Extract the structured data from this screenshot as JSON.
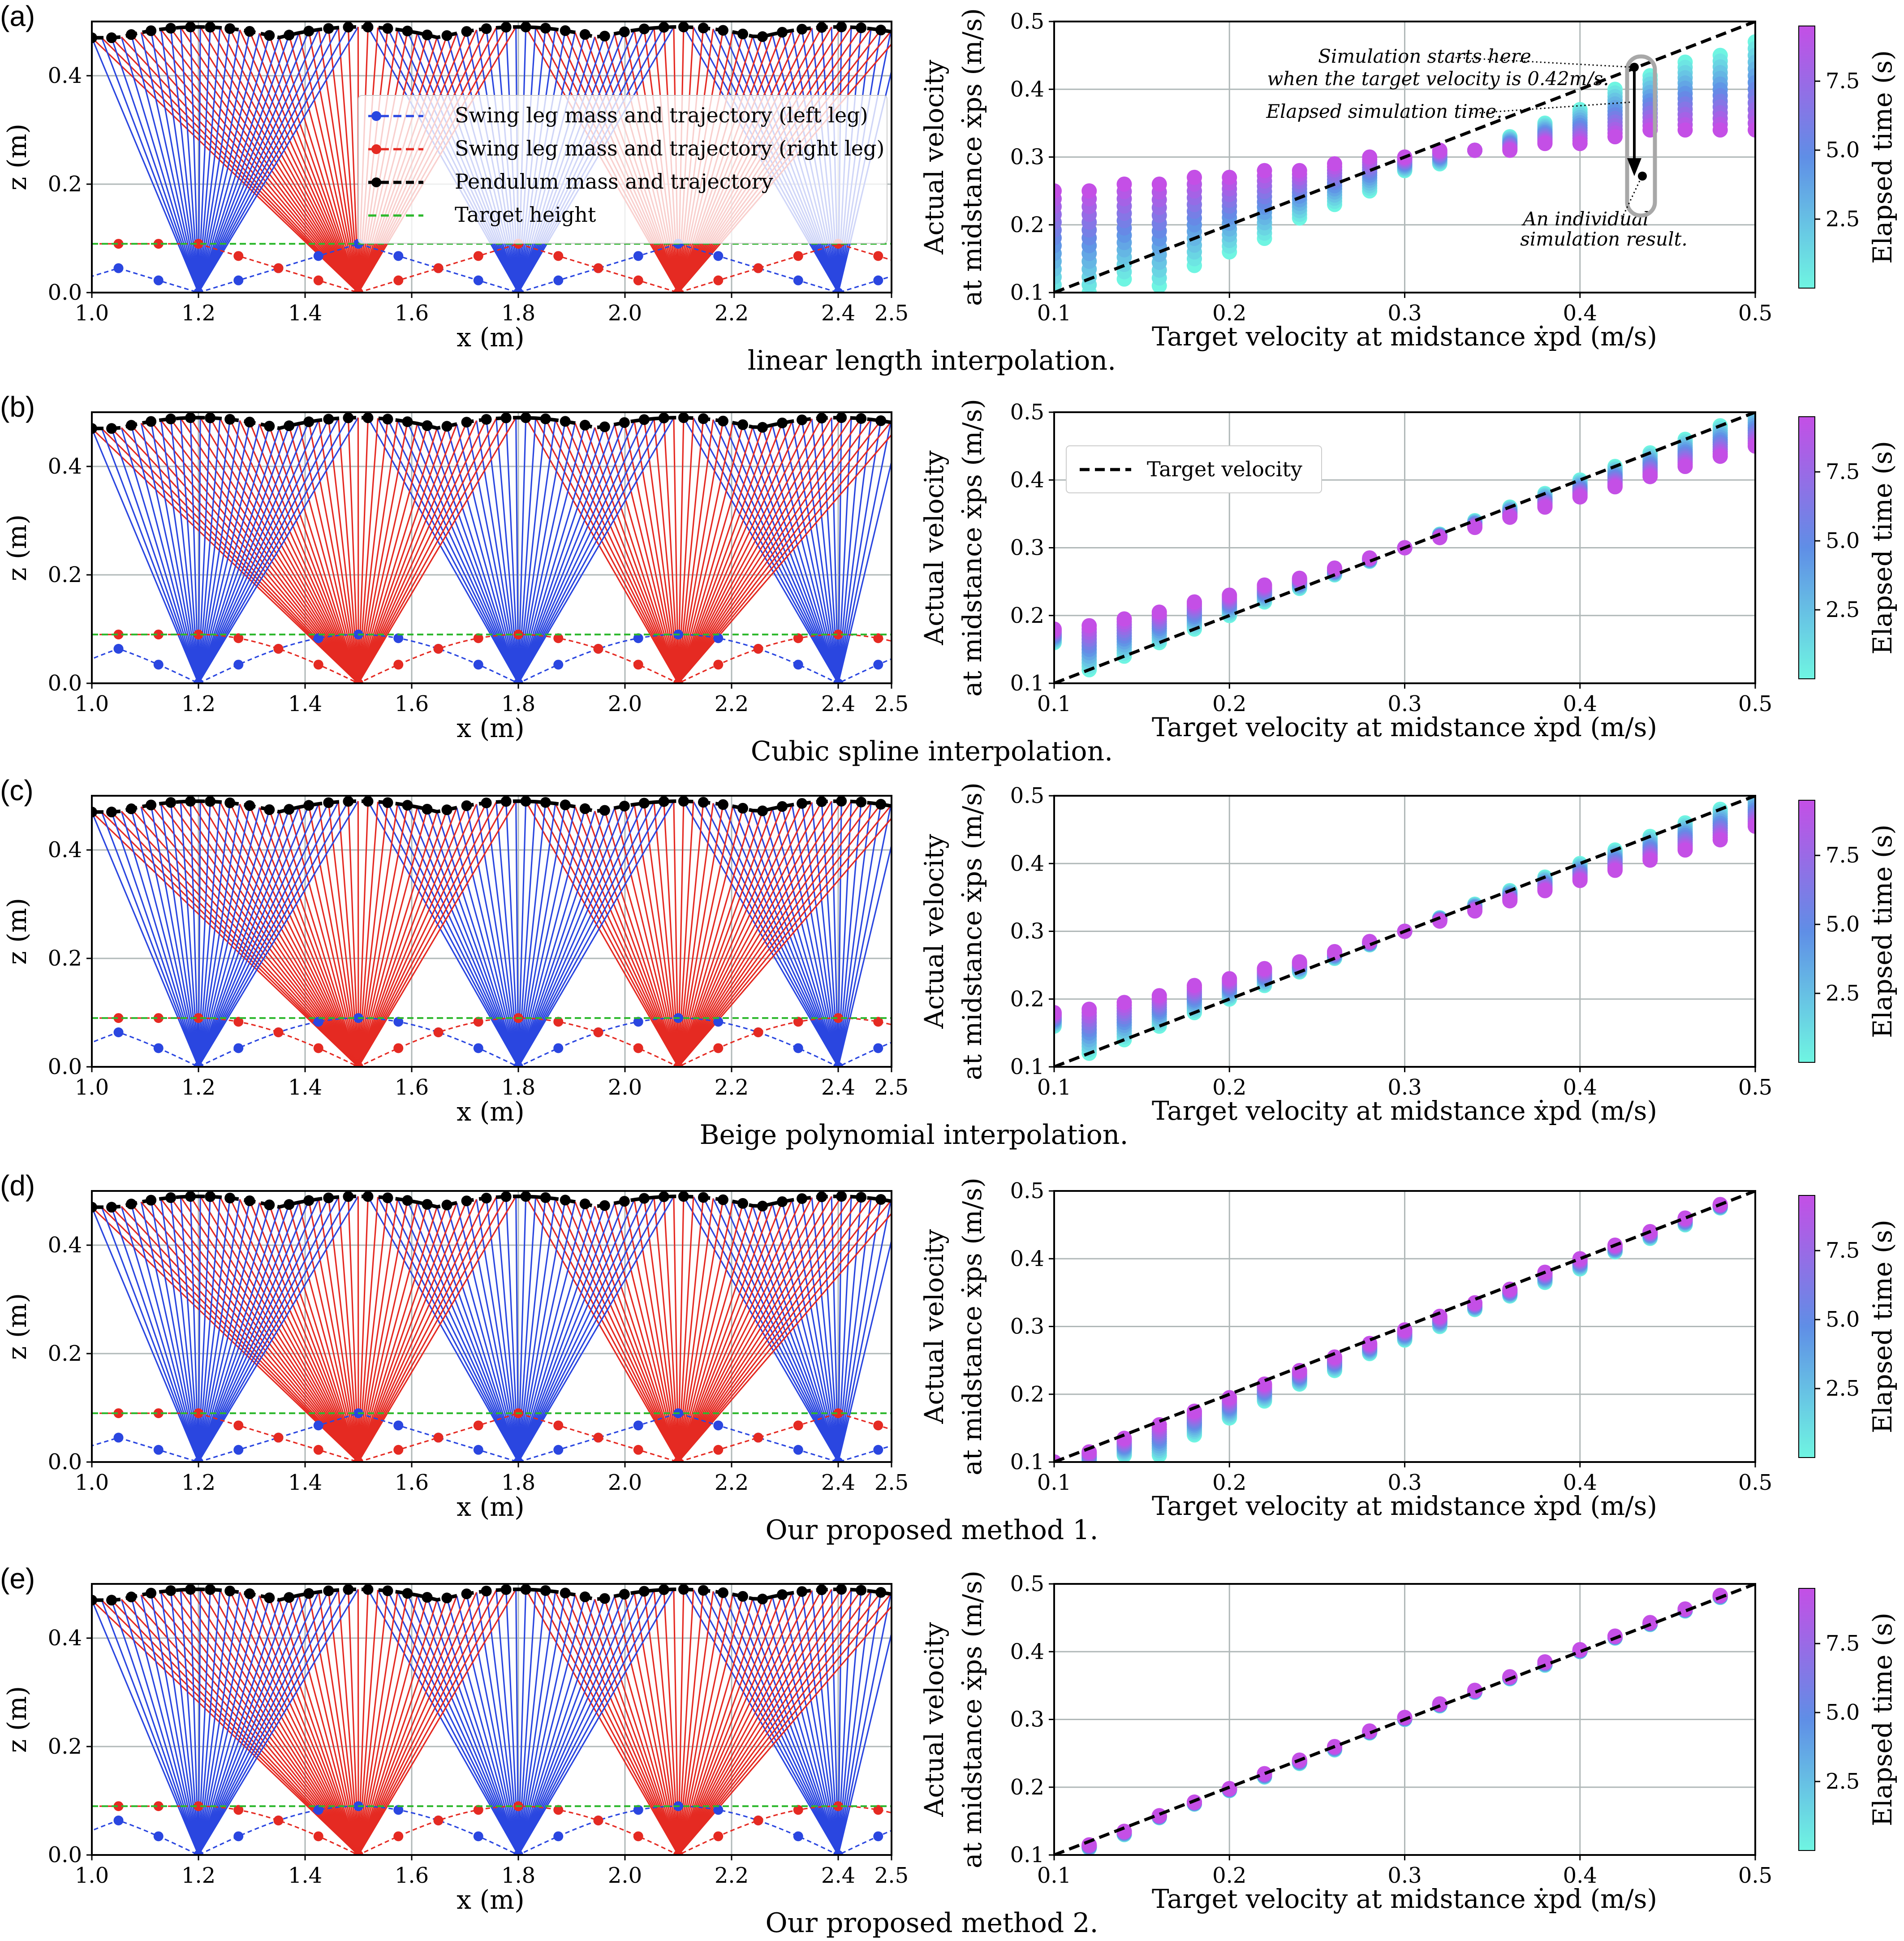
{
  "caption_labels": {
    "a": "linear length interpolation.",
    "b": "Cubic spline interpolation.",
    "c": "Beige polynomial interpolation.",
    "d": "Our proposed method 1.",
    "e": "Our proposed method 2."
  },
  "colors": {
    "left_leg": "#2a46e0",
    "right_leg": "#e52a22",
    "pendulum": "#000000",
    "target_height": "#2cb82c",
    "target_velocity_line": "#000000",
    "colormap_low": "#6ff5e2",
    "colormap_mid": "#5f8ee6",
    "colormap_high": "#c44fe6",
    "grid": "#b0b8b8",
    "annotation_box": "#a8a8a8"
  },
  "chart_data": [
    {
      "type": "line",
      "panel": "(a)",
      "caption": "linear length interpolation.",
      "xlabel": "x (m)",
      "ylabel": "z (m)",
      "xlim": [
        1.0,
        2.5
      ],
      "ylim": [
        0.0,
        0.5
      ],
      "xticks": [
        "1.0",
        "1.2",
        "1.4",
        "1.6",
        "1.8",
        "2.0",
        "2.2",
        "2.4"
      ],
      "yticks": [
        "0.0",
        "0.2",
        "0.4"
      ],
      "grid": true,
      "legend": {
        "placement": "upper-center",
        "entries": [
          "Swing leg mass and trajectory (left leg)",
          "Swing leg mass and trajectory (right leg)",
          "Pendulum mass and trajectory",
          "Target height"
        ]
      },
      "stance_foot_x": {
        "left": [
          1.2,
          1.8,
          2.4
        ],
        "right": [
          1.5,
          2.1
        ]
      },
      "pendulum_height": {
        "min": 0.47,
        "max": 0.49
      },
      "swing_trajectory": {
        "peak_z": 0.09,
        "style": "linear"
      },
      "target_height": 0.09
    },
    {
      "type": "scatter",
      "panel": "(a)",
      "xlabel": "Target velocity at midstance ẋpd (m/s)",
      "ylabel_line1": "Actual velocity",
      "ylabel_line2": "at midstance ẋps (m/s)",
      "xlim": [
        0.1,
        0.5
      ],
      "ylim": [
        0.1,
        0.5
      ],
      "xticks": [
        "0.1",
        "0.2",
        "0.3",
        "0.4",
        "0.5"
      ],
      "yticks": [
        "0.1",
        "0.2",
        "0.3",
        "0.4",
        "0.5"
      ],
      "grid": true,
      "colorbar": {
        "label": "Elapsed time (s)",
        "ticks": [
          "2.5",
          "5.0",
          "7.5"
        ],
        "range": [
          0.0,
          9.5
        ]
      },
      "target_velocity_line": {
        "x": [
          0.1,
          0.5
        ],
        "y": [
          0.1,
          0.5
        ]
      },
      "series": [
        {
          "x": 0.1,
          "y_start": 0.1,
          "y_end": 0.25
        },
        {
          "x": 0.12,
          "y_start": 0.1,
          "y_end": 0.25
        },
        {
          "x": 0.14,
          "y_start": 0.12,
          "y_end": 0.26
        },
        {
          "x": 0.16,
          "y_start": 0.11,
          "y_end": 0.26
        },
        {
          "x": 0.18,
          "y_start": 0.14,
          "y_end": 0.27
        },
        {
          "x": 0.2,
          "y_start": 0.16,
          "y_end": 0.27
        },
        {
          "x": 0.22,
          "y_start": 0.18,
          "y_end": 0.28
        },
        {
          "x": 0.24,
          "y_start": 0.21,
          "y_end": 0.28
        },
        {
          "x": 0.26,
          "y_start": 0.23,
          "y_end": 0.29
        },
        {
          "x": 0.28,
          "y_start": 0.25,
          "y_end": 0.3
        },
        {
          "x": 0.3,
          "y_start": 0.28,
          "y_end": 0.3
        },
        {
          "x": 0.32,
          "y_start": 0.29,
          "y_end": 0.31
        },
        {
          "x": 0.34,
          "y_start": 0.31,
          "y_end": 0.31
        },
        {
          "x": 0.36,
          "y_start": 0.33,
          "y_end": 0.31
        },
        {
          "x": 0.38,
          "y_start": 0.35,
          "y_end": 0.32
        },
        {
          "x": 0.4,
          "y_start": 0.37,
          "y_end": 0.32
        },
        {
          "x": 0.42,
          "y_start": 0.4,
          "y_end": 0.33
        },
        {
          "x": 0.44,
          "y_start": 0.42,
          "y_end": 0.34
        },
        {
          "x": 0.46,
          "y_start": 0.44,
          "y_end": 0.34
        },
        {
          "x": 0.48,
          "y_start": 0.45,
          "y_end": 0.34
        },
        {
          "x": 0.5,
          "y_start": 0.47,
          "y_end": 0.34
        }
      ],
      "annotations": [
        "Simulation starts here",
        "when the target velocity is 0.42m/s.",
        "Elapsed simulation time.",
        "An individual",
        "simulation result."
      ]
    },
    {
      "type": "line",
      "panel": "(b)",
      "caption": "Cubic spline interpolation.",
      "xlabel": "x (m)",
      "ylabel": "z (m)",
      "xlim": [
        1.0,
        2.5
      ],
      "ylim": [
        0.0,
        0.5
      ],
      "stance_foot_x": {
        "left": [
          1.2,
          1.8,
          2.4
        ],
        "right": [
          1.5,
          2.1
        ]
      },
      "pendulum_height": {
        "min": 0.47,
        "max": 0.49
      },
      "swing_trajectory": {
        "peak_z": 0.09,
        "style": "curved"
      },
      "target_height": 0.09
    },
    {
      "type": "scatter",
      "panel": "(b)",
      "xlim": [
        0.1,
        0.5
      ],
      "ylim": [
        0.1,
        0.5
      ],
      "legend": {
        "placement": "upper-left",
        "entries": [
          "Target velocity"
        ]
      },
      "series": [
        {
          "x": 0.1,
          "y_start": 0.16,
          "y_end": 0.18
        },
        {
          "x": 0.12,
          "y_start": 0.12,
          "y_end": 0.185
        },
        {
          "x": 0.14,
          "y_start": 0.14,
          "y_end": 0.195
        },
        {
          "x": 0.16,
          "y_start": 0.16,
          "y_end": 0.205
        },
        {
          "x": 0.18,
          "y_start": 0.18,
          "y_end": 0.22
        },
        {
          "x": 0.2,
          "y_start": 0.2,
          "y_end": 0.23
        },
        {
          "x": 0.22,
          "y_start": 0.22,
          "y_end": 0.245
        },
        {
          "x": 0.24,
          "y_start": 0.24,
          "y_end": 0.255
        },
        {
          "x": 0.26,
          "y_start": 0.26,
          "y_end": 0.27
        },
        {
          "x": 0.28,
          "y_start": 0.28,
          "y_end": 0.285
        },
        {
          "x": 0.3,
          "y_start": 0.3,
          "y_end": 0.3
        },
        {
          "x": 0.32,
          "y_start": 0.32,
          "y_end": 0.315
        },
        {
          "x": 0.34,
          "y_start": 0.34,
          "y_end": 0.33
        },
        {
          "x": 0.36,
          "y_start": 0.36,
          "y_end": 0.345
        },
        {
          "x": 0.38,
          "y_start": 0.38,
          "y_end": 0.36
        },
        {
          "x": 0.4,
          "y_start": 0.4,
          "y_end": 0.375
        },
        {
          "x": 0.42,
          "y_start": 0.42,
          "y_end": 0.39
        },
        {
          "x": 0.44,
          "y_start": 0.44,
          "y_end": 0.405
        },
        {
          "x": 0.46,
          "y_start": 0.46,
          "y_end": 0.42
        },
        {
          "x": 0.48,
          "y_start": 0.48,
          "y_end": 0.435
        },
        {
          "x": 0.5,
          "y_start": 0.5,
          "y_end": 0.45
        }
      ]
    },
    {
      "type": "line",
      "panel": "(c)",
      "caption": "Beige polynomial interpolation.",
      "xlabel": "x (m)",
      "ylabel": "z (m)",
      "xlim": [
        1.0,
        2.5
      ],
      "ylim": [
        0.0,
        0.5
      ],
      "stance_foot_x": {
        "left": [
          1.2,
          1.8,
          2.4
        ],
        "right": [
          1.5,
          2.1
        ]
      },
      "pendulum_height": {
        "min": 0.47,
        "max": 0.49
      },
      "swing_trajectory": {
        "peak_z": 0.09,
        "style": "curved"
      },
      "target_height": 0.09
    },
    {
      "type": "scatter",
      "panel": "(c)",
      "xlim": [
        0.1,
        0.5
      ],
      "ylim": [
        0.1,
        0.5
      ],
      "series": [
        {
          "x": 0.1,
          "y_start": 0.16,
          "y_end": 0.18
        },
        {
          "x": 0.12,
          "y_start": 0.12,
          "y_end": 0.185
        },
        {
          "x": 0.14,
          "y_start": 0.14,
          "y_end": 0.195
        },
        {
          "x": 0.16,
          "y_start": 0.16,
          "y_end": 0.205
        },
        {
          "x": 0.18,
          "y_start": 0.18,
          "y_end": 0.22
        },
        {
          "x": 0.2,
          "y_start": 0.2,
          "y_end": 0.23
        },
        {
          "x": 0.22,
          "y_start": 0.22,
          "y_end": 0.245
        },
        {
          "x": 0.24,
          "y_start": 0.24,
          "y_end": 0.255
        },
        {
          "x": 0.26,
          "y_start": 0.26,
          "y_end": 0.27
        },
        {
          "x": 0.28,
          "y_start": 0.28,
          "y_end": 0.285
        },
        {
          "x": 0.3,
          "y_start": 0.3,
          "y_end": 0.3
        },
        {
          "x": 0.32,
          "y_start": 0.32,
          "y_end": 0.315
        },
        {
          "x": 0.34,
          "y_start": 0.34,
          "y_end": 0.33
        },
        {
          "x": 0.36,
          "y_start": 0.36,
          "y_end": 0.345
        },
        {
          "x": 0.38,
          "y_start": 0.38,
          "y_end": 0.36
        },
        {
          "x": 0.4,
          "y_start": 0.4,
          "y_end": 0.375
        },
        {
          "x": 0.42,
          "y_start": 0.42,
          "y_end": 0.39
        },
        {
          "x": 0.44,
          "y_start": 0.44,
          "y_end": 0.405
        },
        {
          "x": 0.46,
          "y_start": 0.46,
          "y_end": 0.42
        },
        {
          "x": 0.48,
          "y_start": 0.48,
          "y_end": 0.435
        },
        {
          "x": 0.5,
          "y_start": 0.5,
          "y_end": 0.455
        }
      ]
    },
    {
      "type": "line",
      "panel": "(d)",
      "caption": "Our proposed method 1.",
      "xlabel": "x (m)",
      "ylabel": "z (m)",
      "xlim": [
        1.0,
        2.5
      ],
      "ylim": [
        0.0,
        0.5
      ],
      "stance_foot_x": {
        "left": [
          1.2,
          1.8,
          2.4
        ],
        "right": [
          1.5,
          2.1
        ]
      },
      "pendulum_height": {
        "min": 0.47,
        "max": 0.49
      },
      "swing_trajectory": {
        "peak_z": 0.09,
        "style": "linear"
      },
      "target_height": 0.09
    },
    {
      "type": "scatter",
      "panel": "(d)",
      "xlim": [
        0.1,
        0.5
      ],
      "ylim": [
        0.1,
        0.5
      ],
      "series": [
        {
          "x": 0.1,
          "y_start": 0.1,
          "y_end": 0.1
        },
        {
          "x": 0.12,
          "y_start": 0.1,
          "y_end": 0.115
        },
        {
          "x": 0.14,
          "y_start": 0.11,
          "y_end": 0.135
        },
        {
          "x": 0.16,
          "y_start": 0.11,
          "y_end": 0.155
        },
        {
          "x": 0.18,
          "y_start": 0.14,
          "y_end": 0.175
        },
        {
          "x": 0.2,
          "y_start": 0.165,
          "y_end": 0.195
        },
        {
          "x": 0.22,
          "y_start": 0.19,
          "y_end": 0.215
        },
        {
          "x": 0.24,
          "y_start": 0.215,
          "y_end": 0.235
        },
        {
          "x": 0.26,
          "y_start": 0.235,
          "y_end": 0.255
        },
        {
          "x": 0.28,
          "y_start": 0.26,
          "y_end": 0.275
        },
        {
          "x": 0.3,
          "y_start": 0.28,
          "y_end": 0.295
        },
        {
          "x": 0.32,
          "y_start": 0.3,
          "y_end": 0.315
        },
        {
          "x": 0.34,
          "y_start": 0.325,
          "y_end": 0.335
        },
        {
          "x": 0.36,
          "y_start": 0.345,
          "y_end": 0.355
        },
        {
          "x": 0.38,
          "y_start": 0.365,
          "y_end": 0.38
        },
        {
          "x": 0.4,
          "y_start": 0.385,
          "y_end": 0.4
        },
        {
          "x": 0.42,
          "y_start": 0.41,
          "y_end": 0.42
        },
        {
          "x": 0.44,
          "y_start": 0.43,
          "y_end": 0.44
        },
        {
          "x": 0.46,
          "y_start": 0.45,
          "y_end": 0.46
        },
        {
          "x": 0.48,
          "y_start": 0.475,
          "y_end": 0.48
        }
      ]
    },
    {
      "type": "line",
      "panel": "(e)",
      "caption": "Our proposed method 2.",
      "xlabel": "x (m)",
      "ylabel": "z (m)",
      "xlim": [
        1.0,
        2.5
      ],
      "ylim": [
        0.0,
        0.5
      ],
      "stance_foot_x": {
        "left": [
          1.2,
          1.8,
          2.4
        ],
        "right": [
          1.5,
          2.1
        ]
      },
      "pendulum_height": {
        "min": 0.47,
        "max": 0.49
      },
      "swing_trajectory": {
        "peak_z": 0.09,
        "style": "curved"
      },
      "target_height": 0.09
    },
    {
      "type": "scatter",
      "panel": "(e)",
      "xlim": [
        0.1,
        0.5
      ],
      "ylim": [
        0.1,
        0.5
      ],
      "series": [
        {
          "x": 0.12,
          "y_start": 0.11,
          "y_end": 0.115
        },
        {
          "x": 0.14,
          "y_start": 0.13,
          "y_end": 0.135
        },
        {
          "x": 0.16,
          "y_start": 0.155,
          "y_end": 0.158
        },
        {
          "x": 0.18,
          "y_start": 0.175,
          "y_end": 0.178
        },
        {
          "x": 0.2,
          "y_start": 0.195,
          "y_end": 0.198
        },
        {
          "x": 0.22,
          "y_start": 0.215,
          "y_end": 0.22
        },
        {
          "x": 0.24,
          "y_start": 0.235,
          "y_end": 0.24
        },
        {
          "x": 0.26,
          "y_start": 0.255,
          "y_end": 0.26
        },
        {
          "x": 0.28,
          "y_start": 0.28,
          "y_end": 0.283
        },
        {
          "x": 0.3,
          "y_start": 0.3,
          "y_end": 0.303
        },
        {
          "x": 0.32,
          "y_start": 0.32,
          "y_end": 0.323
        },
        {
          "x": 0.34,
          "y_start": 0.34,
          "y_end": 0.343
        },
        {
          "x": 0.36,
          "y_start": 0.36,
          "y_end": 0.363
        },
        {
          "x": 0.38,
          "y_start": 0.38,
          "y_end": 0.385
        },
        {
          "x": 0.4,
          "y_start": 0.4,
          "y_end": 0.403
        },
        {
          "x": 0.42,
          "y_start": 0.42,
          "y_end": 0.423
        },
        {
          "x": 0.44,
          "y_start": 0.44,
          "y_end": 0.443
        },
        {
          "x": 0.46,
          "y_start": 0.46,
          "y_end": 0.463
        },
        {
          "x": 0.48,
          "y_start": 0.48,
          "y_end": 0.483
        }
      ]
    }
  ]
}
